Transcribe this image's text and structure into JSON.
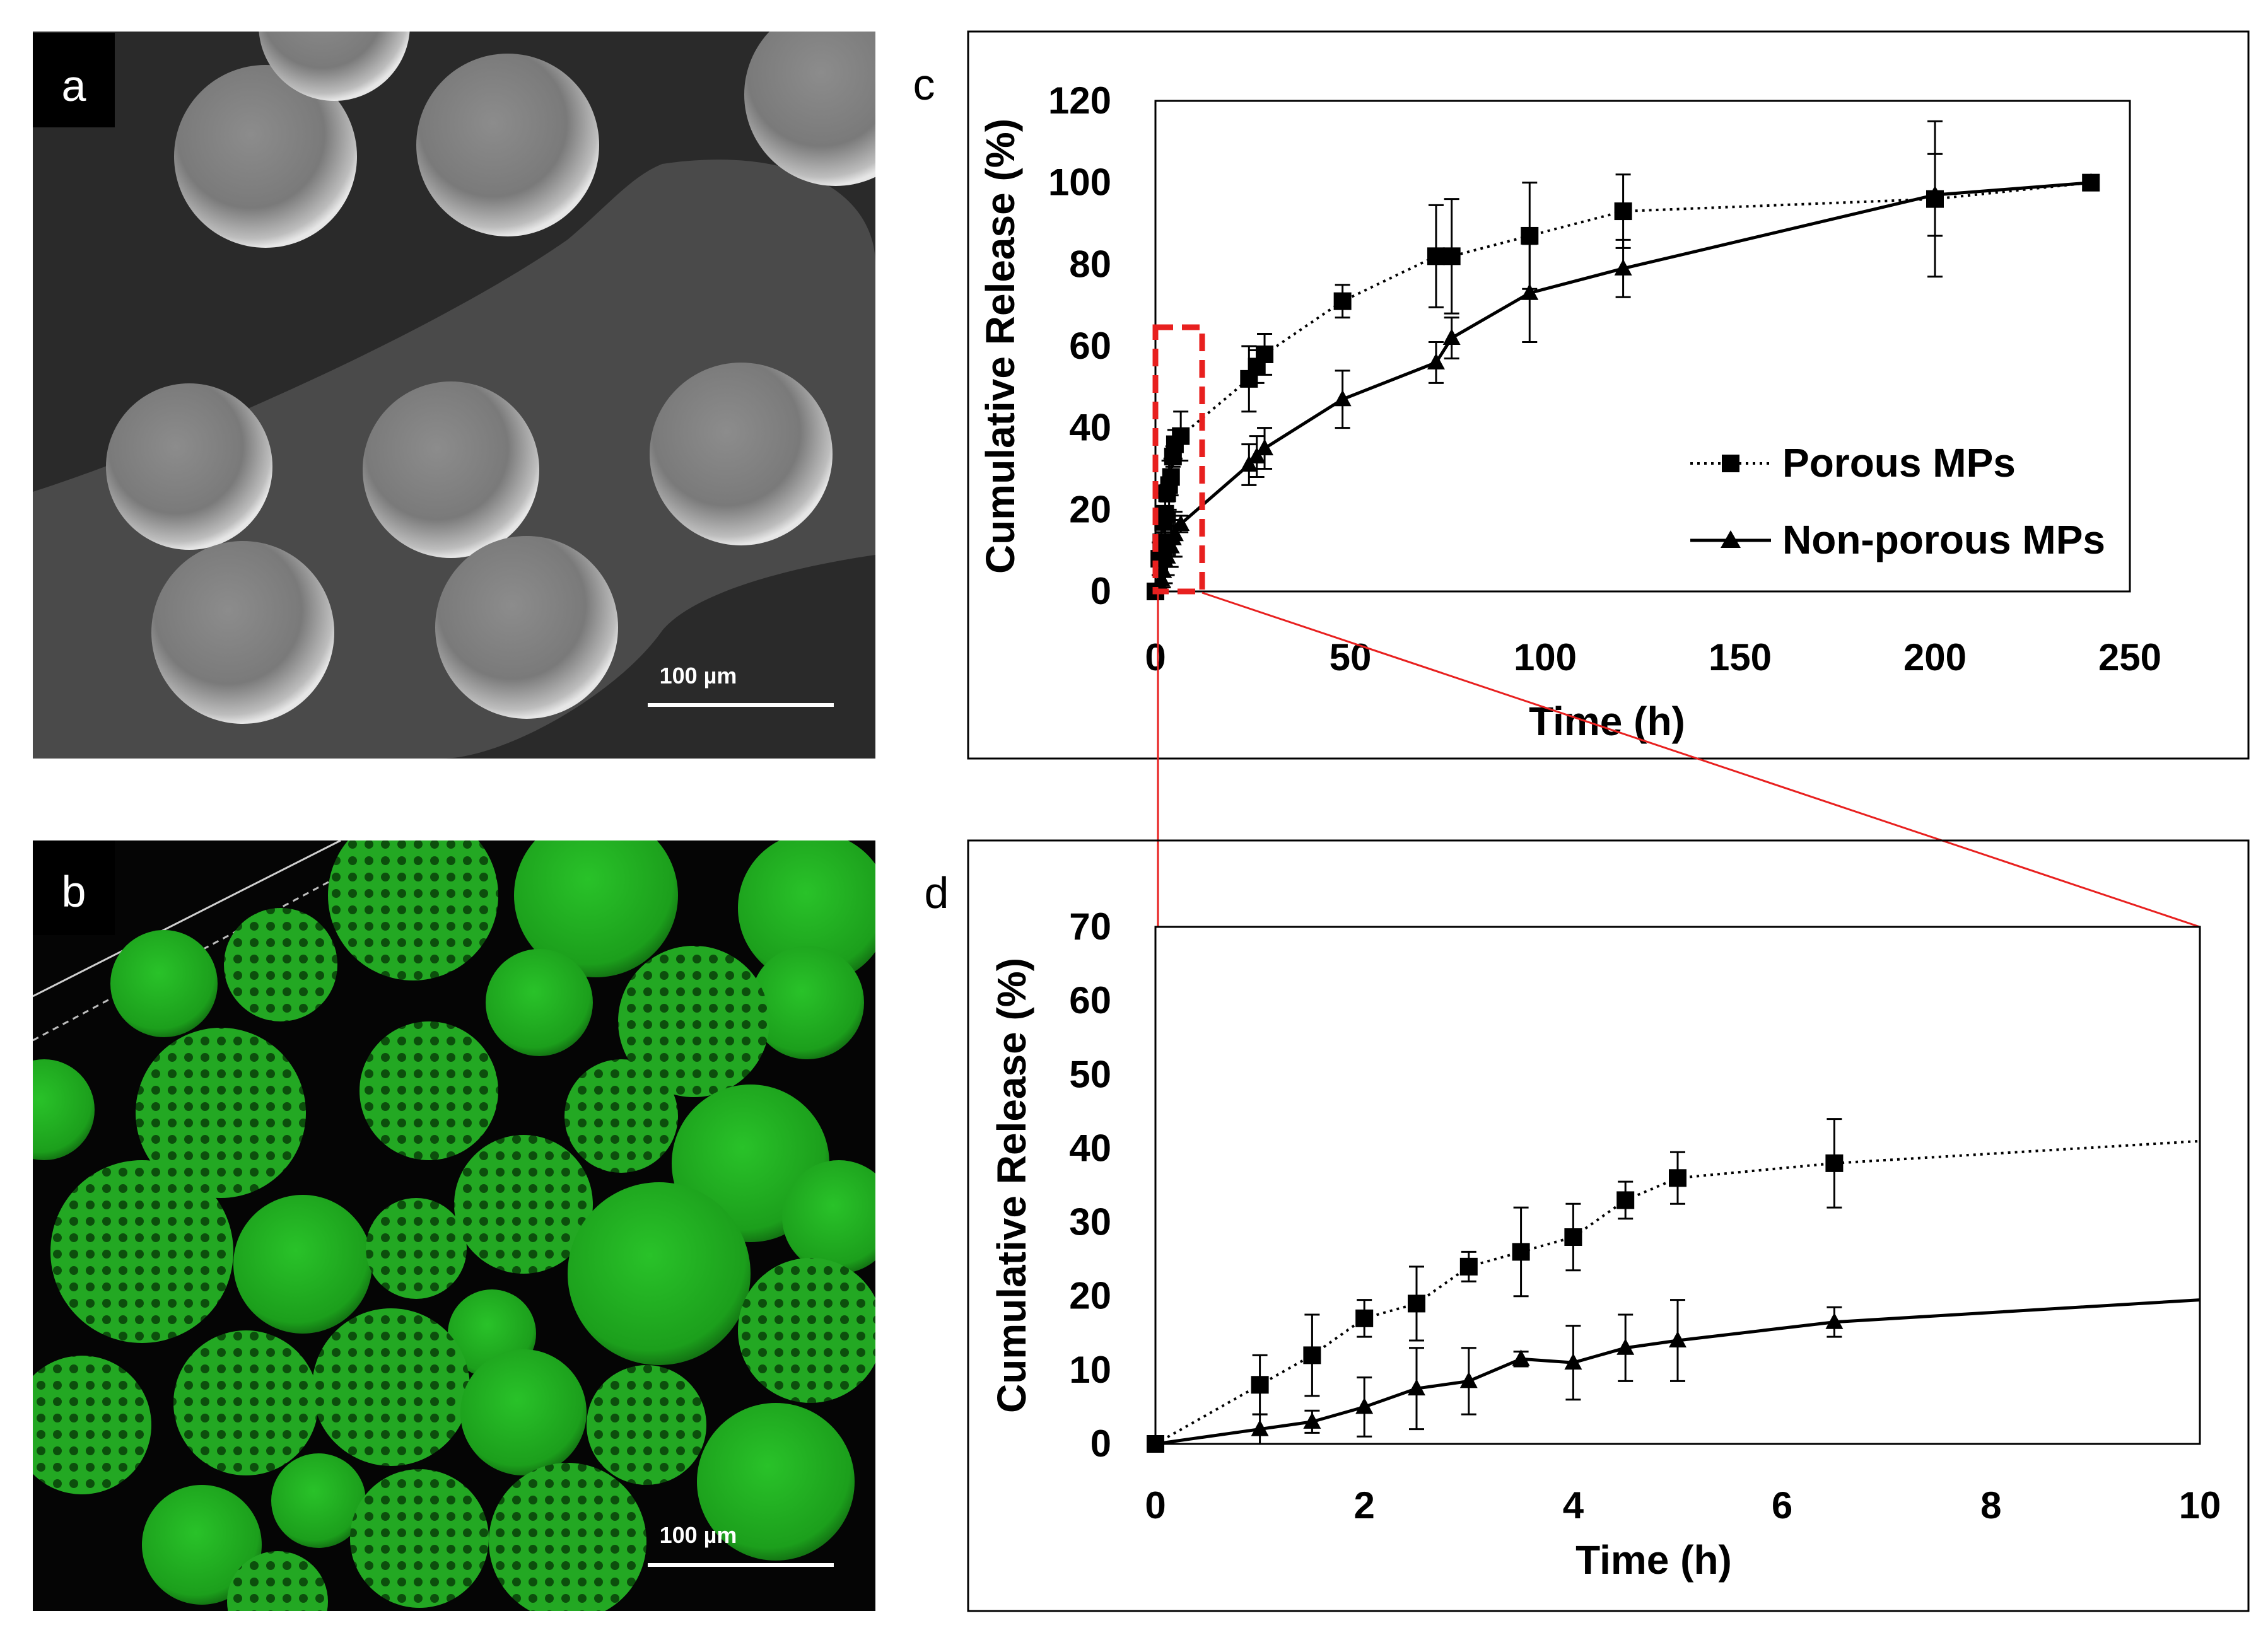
{
  "panels": {
    "a": {
      "letter": "a",
      "scale_bar": "100 µm",
      "image": "sem-micrograph-smooth-microspheres"
    },
    "b": {
      "letter": "b",
      "scale_bar": "100 µm",
      "image": "fluorescence-micrograph-porous-microspheres"
    },
    "c": {
      "letter": "c"
    },
    "d": {
      "letter": "d"
    }
  },
  "colors": {
    "zoom_box": "#e8201f",
    "zoom_line": "#e8201f",
    "fluorescence_green": "#1fae1f",
    "sem_gray": "#8a8a8a"
  },
  "chart_data": [
    {
      "id": "c",
      "type": "line",
      "xlabel": "Time (h)",
      "ylabel": "Cumulative Release  (%)",
      "xlim": [
        0,
        250
      ],
      "ylim": [
        0,
        120
      ],
      "xticks": [
        0,
        50,
        100,
        150,
        200,
        250
      ],
      "yticks": [
        0,
        20,
        40,
        60,
        80,
        100,
        120
      ],
      "grid": false,
      "legend_position": "right",
      "zoom_region": {
        "x": [
          0,
          12
        ],
        "y": [
          0,
          70
        ]
      },
      "series": [
        {
          "name": "Porous MPs",
          "marker": "square",
          "line": "dotted",
          "x": [
            0,
            1,
            1.5,
            2,
            2.5,
            3,
            3.5,
            4,
            4.5,
            5,
            6.5,
            24,
            26,
            28,
            48,
            72,
            76,
            96,
            120,
            200,
            240
          ],
          "y": [
            0,
            8,
            12,
            17,
            19,
            24,
            26,
            28,
            33,
            36,
            38,
            52,
            55,
            58,
            71,
            82,
            82,
            87,
            93,
            96,
            100
          ],
          "err": [
            0,
            4,
            5.5,
            2.5,
            5,
            2,
            6,
            4.5,
            2.5,
            3.5,
            6,
            8,
            4,
            5,
            4,
            12.5,
            14,
            13,
            9,
            19,
            0
          ]
        },
        {
          "name": "Non-porous MPs",
          "marker": "triangle",
          "line": "solid",
          "x": [
            0,
            1,
            1.5,
            2,
            2.5,
            3,
            3.5,
            4,
            4.5,
            5,
            6.5,
            24,
            26,
            28,
            48,
            72,
            76,
            96,
            120,
            200,
            240
          ],
          "y": [
            0,
            2,
            3,
            5,
            7.5,
            8.5,
            11.5,
            11,
            13,
            14,
            16.5,
            31,
            33,
            35,
            47,
            56,
            62,
            73,
            79,
            97,
            100
          ],
          "err": [
            0,
            2,
            1.5,
            4,
            5.5,
            4.5,
            1,
            5,
            4.5,
            5.5,
            2,
            5,
            5,
            5,
            7,
            5,
            5,
            12,
            7,
            10,
            0
          ]
        }
      ]
    },
    {
      "id": "d",
      "type": "line",
      "xlabel": "Time (h)",
      "ylabel": "Cumulative Release  (%)",
      "xlim": [
        0,
        10
      ],
      "ylim": [
        0,
        70
      ],
      "xticks": [
        0,
        2,
        4,
        6,
        8,
        10
      ],
      "yticks": [
        0,
        10,
        20,
        30,
        40,
        50,
        60,
        70
      ],
      "grid": false,
      "series": [
        {
          "name": "Porous MPs",
          "marker": "square",
          "line": "dotted",
          "x": [
            0,
            1,
            1.5,
            2,
            2.5,
            3,
            3.5,
            4,
            4.5,
            5,
            6.5
          ],
          "y": [
            0,
            8,
            12,
            17,
            19,
            24,
            26,
            28,
            33,
            36,
            38
          ],
          "err": [
            0,
            4,
            5.5,
            2.5,
            5,
            2,
            6,
            4.5,
            2.5,
            3.5,
            6
          ],
          "trend_to": {
            "x": 10,
            "y": 41
          }
        },
        {
          "name": "Non-porous MPs",
          "marker": "triangle",
          "line": "solid",
          "x": [
            0,
            1,
            1.5,
            2,
            2.5,
            3,
            3.5,
            4,
            4.5,
            5,
            6.5
          ],
          "y": [
            0,
            2,
            3,
            5,
            7.5,
            8.5,
            11.5,
            11,
            13,
            14,
            16.5
          ],
          "err": [
            0,
            2,
            1.5,
            4,
            5.5,
            4.5,
            1,
            5,
            4.5,
            5.5,
            2
          ],
          "trend_to": {
            "x": 10,
            "y": 19.5
          }
        }
      ]
    }
  ]
}
